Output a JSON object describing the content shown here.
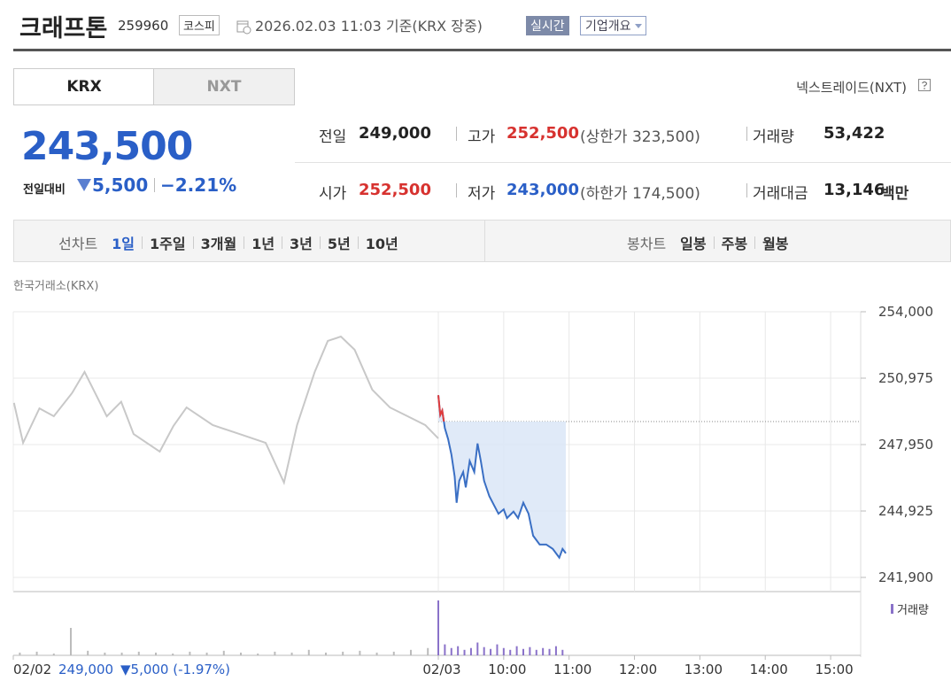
{
  "header": {
    "name": "크래프톤",
    "code": "259960",
    "market": "코스피",
    "timestamp": "2026.02.03 11:03 기준(KRX 장중)",
    "realtime": "실시간",
    "company_info": "기업개요"
  },
  "tabs": [
    "KRX",
    "NXT"
  ],
  "nxt_link": "넥스트레이드(NXT)",
  "price": {
    "current": "243,500",
    "change_label": "전일대비",
    "change": "5,500",
    "change_pct": "−2.21%"
  },
  "stats": {
    "prev": {
      "label": "전일",
      "value": "249,000"
    },
    "high": {
      "label": "고가",
      "value": "252,500",
      "limit": "(상한가 323,500)"
    },
    "volume": {
      "label": "거래량",
      "value": "53,422"
    },
    "open": {
      "label": "시가",
      "value": "252,500"
    },
    "low": {
      "label": "저가",
      "value": "243,000",
      "limit": "(하한가 174,500)"
    },
    "amount": {
      "label": "거래대금",
      "value": "13,146",
      "unit": "백만"
    }
  },
  "toolbar": {
    "line_label": "선차트",
    "line_periods": [
      "1일",
      "1주일",
      "3개월",
      "1년",
      "3년",
      "5년",
      "10년"
    ],
    "candle_label": "봉차트",
    "candle_periods": [
      "일봉",
      "주봉",
      "월봉"
    ]
  },
  "chart_data": {
    "type": "line",
    "source": "한국거래소(KRX)",
    "xlim": [
      -6.5,
      6.5
    ],
    "xticks": [
      {
        "value": -6.5,
        "label": "02/02"
      },
      {
        "value": 0,
        "label": "02/03"
      },
      {
        "value": 1,
        "label": "10:00"
      },
      {
        "value": 2,
        "label": "11:00"
      },
      {
        "value": 3,
        "label": "12:00"
      },
      {
        "value": 4,
        "label": "13:00"
      },
      {
        "value": 5,
        "label": "14:00"
      },
      {
        "value": 6,
        "label": "15:00"
      }
    ],
    "ylim": [
      241255,
      254000
    ],
    "yticks": [
      {
        "value": 254000,
        "label": "254,000"
      },
      {
        "value": 250975,
        "label": "250,975"
      },
      {
        "value": 247950,
        "label": "247,950"
      },
      {
        "value": 244925,
        "label": "244,925"
      },
      {
        "value": 241900,
        "label": "241,900"
      }
    ],
    "grid": true,
    "reference_line": 249000,
    "prev_close": "249,000",
    "prev_change": "▼5,000 (-1.97%)",
    "series": [
      {
        "color": "#c8c8c8",
        "x": [
          -6.49,
          -6.35,
          -6.1,
          -5.88,
          -5.6,
          -5.41,
          -5.07,
          -4.85,
          -4.66,
          -4.26,
          -4.05,
          -3.85,
          -3.45,
          -3.04,
          -2.64,
          -2.36,
          -2.16,
          -1.89,
          -1.69,
          -1.49,
          -1.28,
          -1.01,
          -0.74,
          -0.47,
          -0.2,
          0
        ],
        "values": [
          249850,
          248030,
          249600,
          249240,
          250300,
          251260,
          249240,
          249900,
          248430,
          247630,
          248800,
          249640,
          248840,
          248430,
          248030,
          246220,
          248840,
          251260,
          252670,
          252870,
          252270,
          250450,
          249640,
          249240,
          248840,
          248230
        ]
      },
      {
        "color": "#3a6fc4",
        "up_color": "#e03c3c",
        "x": [
          0,
          0.03,
          0.06,
          0.1,
          0.15,
          0.2,
          0.25,
          0.28,
          0.32,
          0.38,
          0.42,
          0.48,
          0.55,
          0.6,
          0.65,
          0.7,
          0.78,
          0.85,
          0.92,
          1.0,
          1.05,
          1.15,
          1.22,
          1.3,
          1.38,
          1.45,
          1.55,
          1.65,
          1.75,
          1.85,
          1.9,
          1.95
        ],
        "values": [
          250200,
          249300,
          249500,
          248700,
          248200,
          247500,
          246500,
          245300,
          246300,
          246700,
          246000,
          247200,
          246700,
          248000,
          247200,
          246300,
          245600,
          245200,
          244800,
          245000,
          244600,
          244900,
          244600,
          245300,
          244800,
          243800,
          243400,
          243400,
          243200,
          242800,
          243200,
          243000
        ]
      }
    ],
    "volume": {
      "legend": "거래량",
      "ylim": [
        0,
        60
      ],
      "series": [
        {
          "color": "#bbbbbb",
          "x": [
            -6.4,
            -6.14,
            -5.88,
            -5.62,
            -5.36,
            -5.1,
            -4.84,
            -4.58,
            -4.32,
            -4.06,
            -3.8,
            -3.54,
            -3.28,
            -3.02,
            -2.76,
            -2.5,
            -2.24,
            -1.98,
            -1.72,
            -1.46,
            -1.2,
            -0.94,
            -0.68,
            -0.42,
            -0.16
          ],
          "values": [
            3,
            4,
            2,
            30,
            5,
            3,
            3,
            4,
            3,
            2,
            4,
            3,
            5,
            3,
            2,
            4,
            3,
            6,
            3,
            4,
            5,
            3,
            4,
            6,
            8
          ]
        },
        {
          "color": "#8a72c9",
          "x": [
            0,
            0.1,
            0.2,
            0.3,
            0.4,
            0.5,
            0.6,
            0.7,
            0.8,
            0.9,
            1.0,
            1.1,
            1.2,
            1.3,
            1.4,
            1.5,
            1.6,
            1.7,
            1.8,
            1.9
          ],
          "values": [
            60,
            12,
            8,
            10,
            6,
            8,
            14,
            9,
            7,
            12,
            8,
            6,
            10,
            7,
            9,
            6,
            8,
            7,
            10,
            6
          ]
        }
      ]
    }
  }
}
